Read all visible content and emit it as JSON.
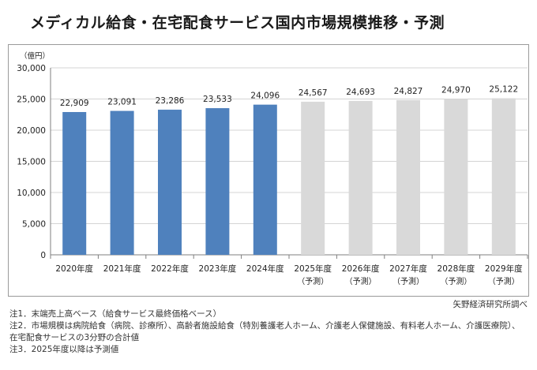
{
  "title": "メディカル給食・在宅配食サービス国内市場規模推移・予測",
  "source": "矢野経済研究所調べ",
  "notes": [
    "注1．末端売上高ベース（給食サービス最終価格ベース）",
    "注2．市場規模は病院給食（病院、診療所）、高齢者施設給食（特別養護老人ホーム、介護老人保健施設、有料老人ホーム、介護医療院）、",
    "在宅配食サービスの3分野の合計値",
    "注3．2025年度以降は予測値"
  ],
  "colors": {
    "actual": "#4f81bd",
    "forecast": "#d9d9d9",
    "grid": "#d4d4d4"
  },
  "chart_data": {
    "type": "bar",
    "ylabel": "（億円）",
    "ylim": [
      0,
      30000
    ],
    "yticks": [
      "0",
      "5,000",
      "10,000",
      "15,000",
      "20,000",
      "25,000",
      "30,000"
    ],
    "categories": [
      "2020年度",
      "2021年度",
      "2022年度",
      "2023年度",
      "2024年度",
      "2025年度",
      "2026年度",
      "2027年度",
      "2028年度",
      "2029年度"
    ],
    "forecast_label": "（予測）",
    "forecast_from_index": 5,
    "values": [
      22909,
      23091,
      23286,
      23533,
      24096,
      24567,
      24693,
      24827,
      24970,
      25122
    ],
    "value_labels": [
      "22,909",
      "23,091",
      "23,286",
      "23,533",
      "24,096",
      "24,567",
      "24,693",
      "24,827",
      "24,970",
      "25,122"
    ]
  }
}
